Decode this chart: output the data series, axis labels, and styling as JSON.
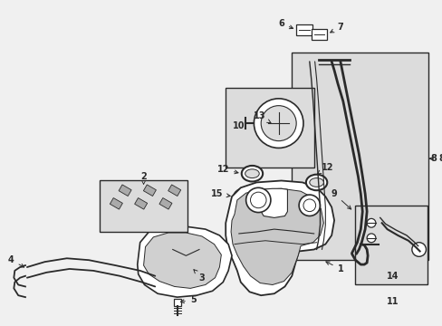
{
  "bg_color": "#f0f0f0",
  "line_color": "#2a2a2a",
  "box_fill": "#dcdcdc",
  "white": "#ffffff",
  "figsize": [
    4.89,
    3.6
  ],
  "dpi": 100,
  "xlim": [
    0,
    489
  ],
  "ylim": [
    0,
    360
  ]
}
